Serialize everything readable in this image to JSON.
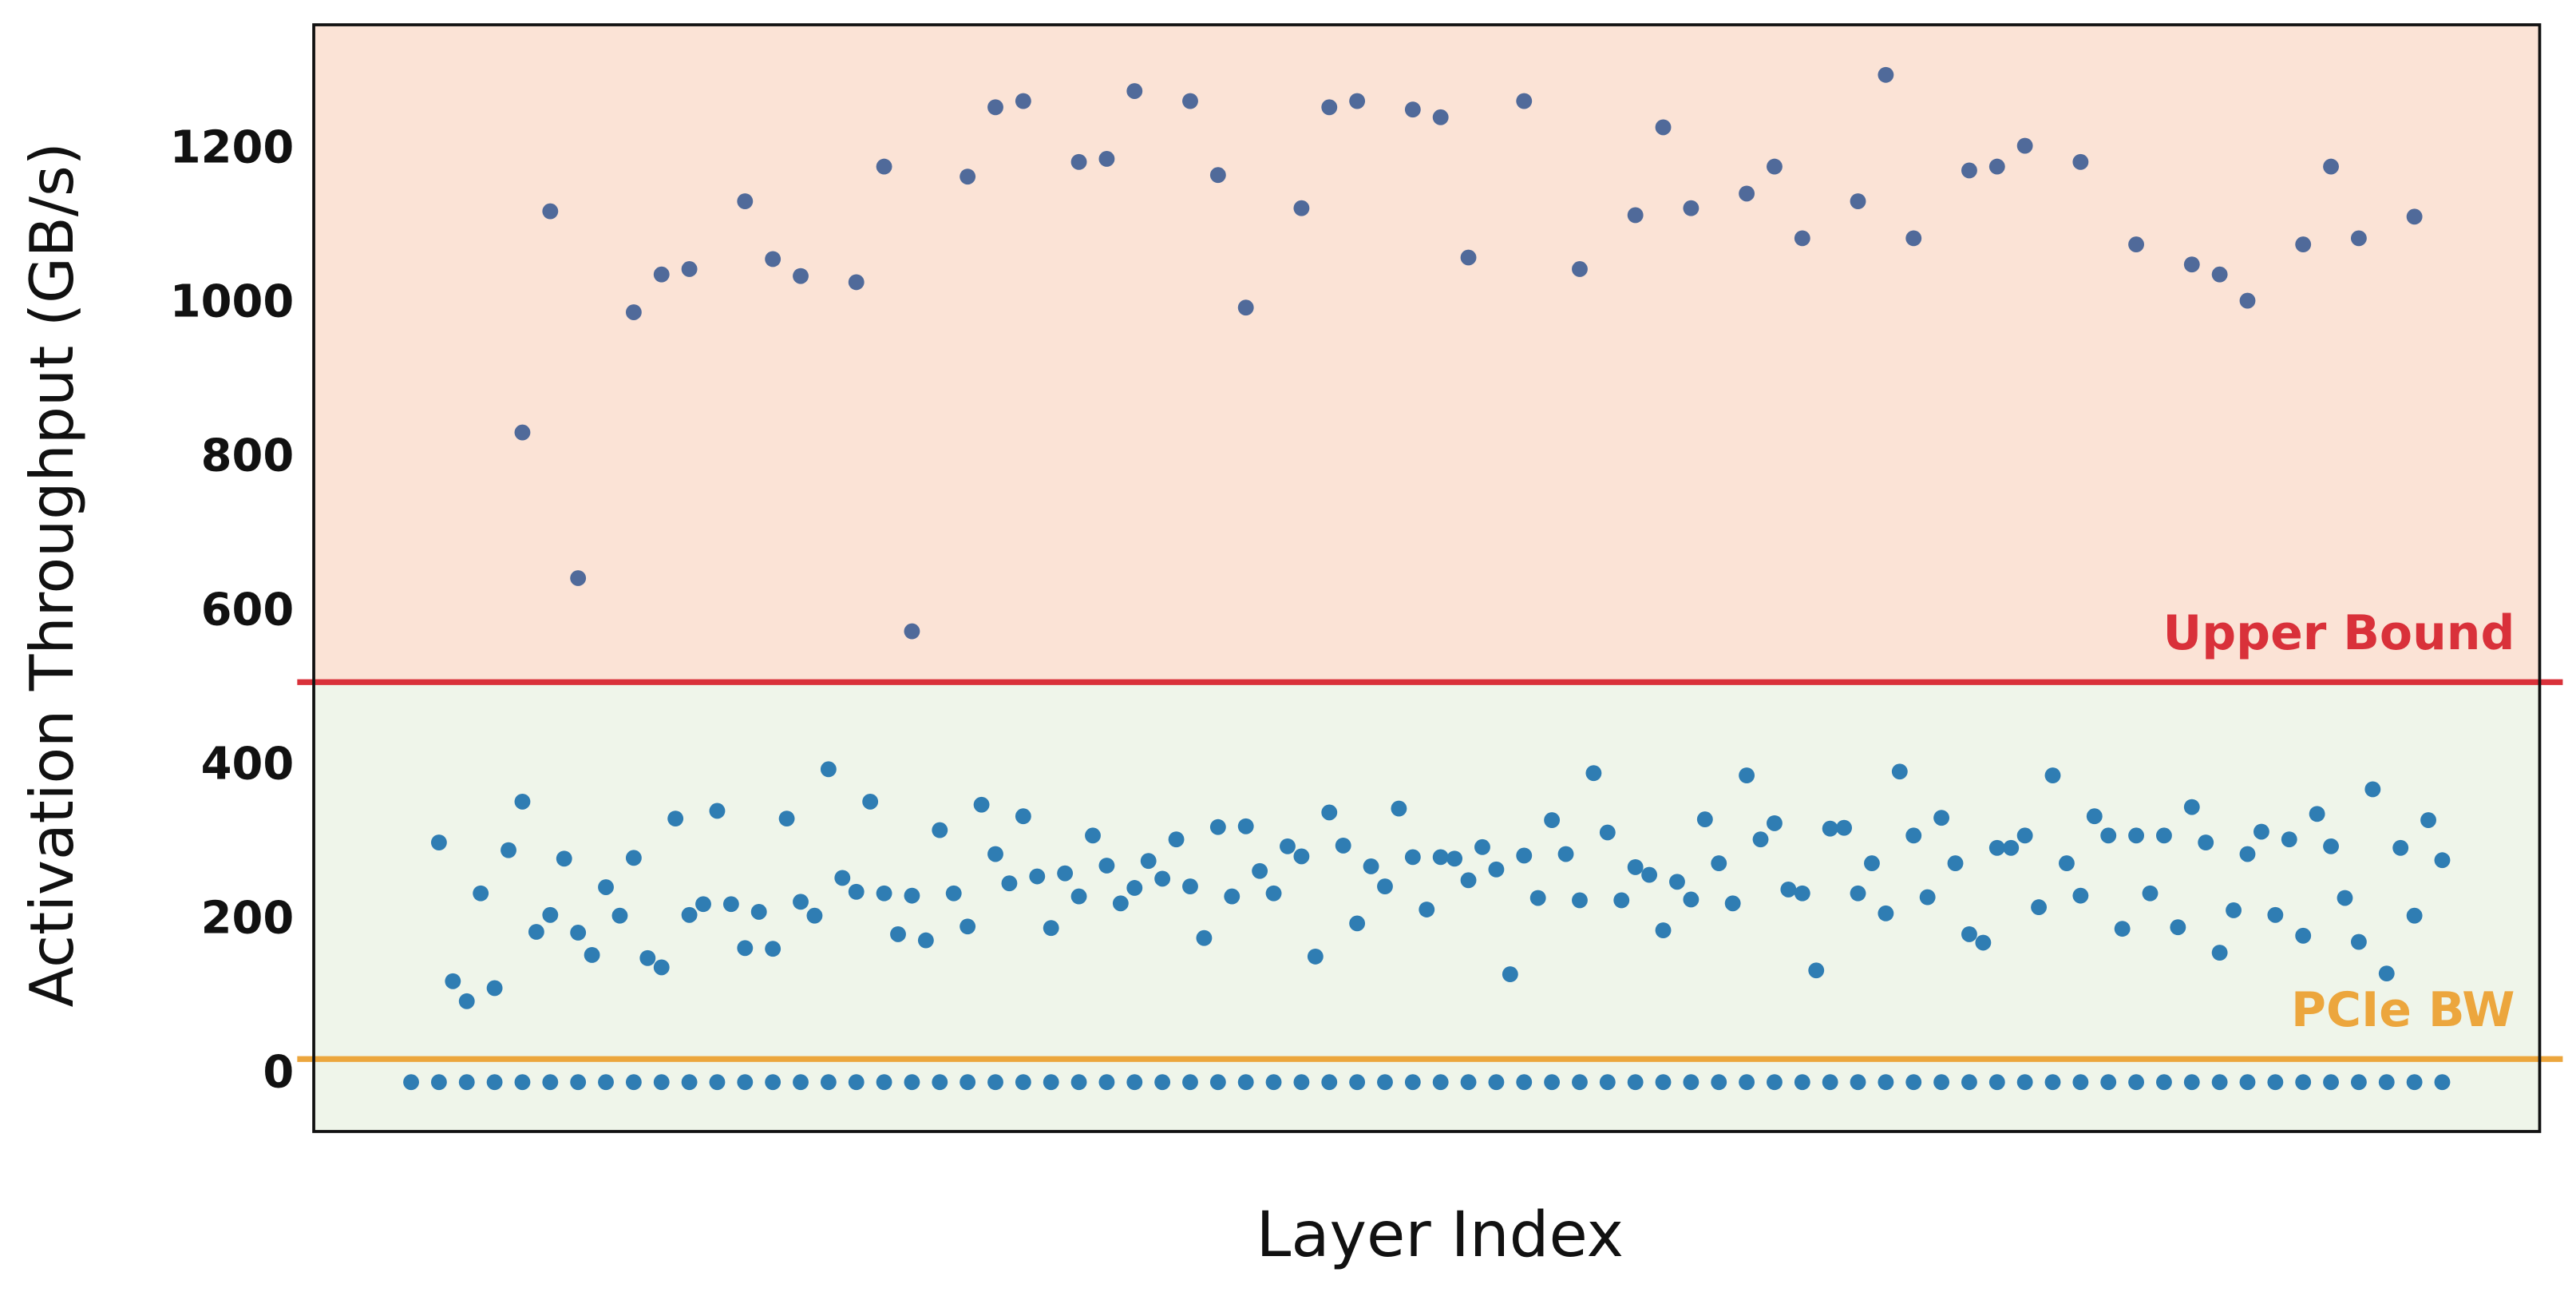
{
  "chart_data": {
    "type": "scatter",
    "xlabel": "Layer Index",
    "ylabel": "Activation Throughput (GB/s)",
    "xlim": [
      -7,
      153
    ],
    "ylim": [
      -73,
      1363
    ],
    "yticks": [
      0,
      200,
      400,
      600,
      800,
      1000,
      1200
    ],
    "reference_lines": [
      {
        "name": "Upper Bound",
        "value": 510,
        "color": "#d9313a",
        "above_color": "#fbe3d6"
      },
      {
        "name": "PCIe BW",
        "value": 21,
        "color": "#eca63d",
        "above_color": "#eff5ea"
      }
    ],
    "series": [
      {
        "color": "#506a9a",
        "x": [
          8,
          10,
          12,
          16,
          18,
          20,
          24,
          26,
          28,
          32,
          34,
          36,
          40,
          42,
          44,
          48,
          50,
          52,
          56,
          58,
          60,
          64,
          66,
          68,
          72,
          74,
          76,
          80,
          84,
          88,
          90,
          92,
          96,
          98,
          100,
          104,
          106,
          108,
          112,
          114,
          116,
          120,
          124,
          128,
          130,
          132,
          136,
          138,
          140,
          144
        ],
        "values": [
          834,
          1121,
          645,
          990,
          1039,
          1046,
          1134,
          1059,
          1037,
          1029,
          1179,
          576,
          1166,
          1256,
          1264,
          1185,
          1189,
          1277,
          1264,
          1168,
          996,
          1125,
          1256,
          1264,
          1253,
          1243,
          1061,
          1264,
          1046,
          1116,
          1230,
          1125,
          1144,
          1179,
          1086,
          1134,
          1298,
          1086,
          1174,
          1179,
          1206,
          1185,
          1078,
          1052,
          1039,
          1005,
          1078,
          1179,
          1086,
          1114
        ]
      },
      {
        "color": "#2f7db3",
        "x": [
          2,
          3,
          4,
          5,
          6,
          7,
          8,
          9,
          10,
          11,
          12,
          13,
          14,
          15,
          16,
          17,
          18,
          19,
          20,
          21,
          22,
          23,
          24,
          25,
          26,
          27,
          28,
          29,
          30,
          31,
          32,
          33,
          34,
          35,
          36,
          37,
          38,
          39,
          40,
          41,
          42,
          43,
          44,
          45,
          46,
          47,
          48,
          49,
          50,
          51,
          52,
          53,
          54,
          55,
          56,
          57,
          58,
          59,
          60,
          61,
          62,
          63,
          64,
          65,
          66,
          67,
          68,
          69,
          70,
          71,
          72,
          73,
          74,
          75,
          76,
          77,
          78,
          79,
          80,
          81,
          82,
          83,
          84,
          85,
          86,
          87,
          88,
          89,
          90,
          91,
          92,
          93,
          94,
          95,
          96,
          97,
          98,
          99,
          100,
          101,
          102,
          103,
          104,
          105,
          106,
          107,
          108,
          109,
          110,
          111,
          112,
          113,
          114,
          115,
          116,
          117,
          118,
          119,
          120,
          121,
          122,
          123,
          124,
          125,
          126,
          127,
          128,
          129,
          130,
          131,
          132,
          133,
          134,
          135,
          136,
          137,
          138,
          139,
          140,
          141,
          142,
          143,
          144,
          145,
          146
        ],
        "values": [
          302,
          122,
          96,
          236,
          113,
          292,
          355,
          186,
          208,
          281,
          185,
          156,
          244,
          207,
          282,
          152,
          140,
          333,
          208,
          222,
          343,
          222,
          165,
          212,
          164,
          333,
          225,
          207,
          397,
          256,
          238,
          355,
          236,
          183,
          233,
          175,
          318,
          236,
          193,
          351,
          287,
          249,
          336,
          258,
          191,
          262,
          232,
          311,
          272,
          223,
          243,
          278,
          255,
          306,
          245,
          178,
          322,
          232,
          323,
          265,
          236,
          297,
          284,
          154,
          341,
          298,
          197,
          271,
          245,
          346,
          283,
          215,
          283,
          281,
          253,
          296,
          267,
          131,
          285,
          230,
          331,
          287,
          227,
          392,
          315,
          227,
          270,
          260,
          188,
          251,
          228,
          332,
          275,
          223,
          389,
          306,
          327,
          241,
          236,
          136,
          320,
          321,
          236,
          275,
          210,
          394,
          311,
          231,
          334,
          275,
          183,
          172,
          295,
          295,
          311,
          218,
          389,
          275,
          233,
          336,
          311,
          190,
          311,
          236,
          311,
          192,
          348,
          302,
          159,
          214,
          287,
          316,
          208,
          306,
          181,
          339,
          297,
          230,
          173,
          371,
          132,
          295,
          207,
          331,
          279
        ]
      },
      {
        "color": "#2f7db3",
        "x": [
          0,
          2,
          4,
          6,
          8,
          10,
          12,
          14,
          16,
          18,
          20,
          22,
          24,
          26,
          28,
          30,
          32,
          34,
          36,
          38,
          40,
          42,
          44,
          46,
          48,
          50,
          52,
          54,
          56,
          58,
          60,
          62,
          64,
          66,
          68,
          70,
          72,
          74,
          76,
          78,
          80,
          82,
          84,
          86,
          88,
          90,
          92,
          94,
          96,
          98,
          100,
          102,
          104,
          106,
          108,
          110,
          112,
          114,
          116,
          118,
          120,
          122,
          124,
          126,
          128,
          130,
          132,
          134,
          136,
          138,
          140,
          142,
          144,
          146
        ],
        "values": [
          -9,
          -9,
          -9,
          -9,
          -9,
          -9,
          -9,
          -9,
          -9,
          -9,
          -9,
          -9,
          -9,
          -9,
          -9,
          -9,
          -9,
          -9,
          -9,
          -9,
          -9,
          -9,
          -9,
          -9,
          -9,
          -9,
          -9,
          -9,
          -9,
          -9,
          -9,
          -9,
          -9,
          -9,
          -9,
          -9,
          -9,
          -9,
          -9,
          -9,
          -9,
          -9,
          -9,
          -9,
          -9,
          -9,
          -9,
          -9,
          -9,
          -9,
          -9,
          -9,
          -9,
          -9,
          -9,
          -9,
          -9,
          -9,
          -9,
          -9,
          -9,
          -9,
          -9,
          -9,
          -9,
          -9,
          -9,
          -9,
          -9,
          -9,
          -9,
          -9,
          -9,
          -9
        ]
      }
    ]
  }
}
